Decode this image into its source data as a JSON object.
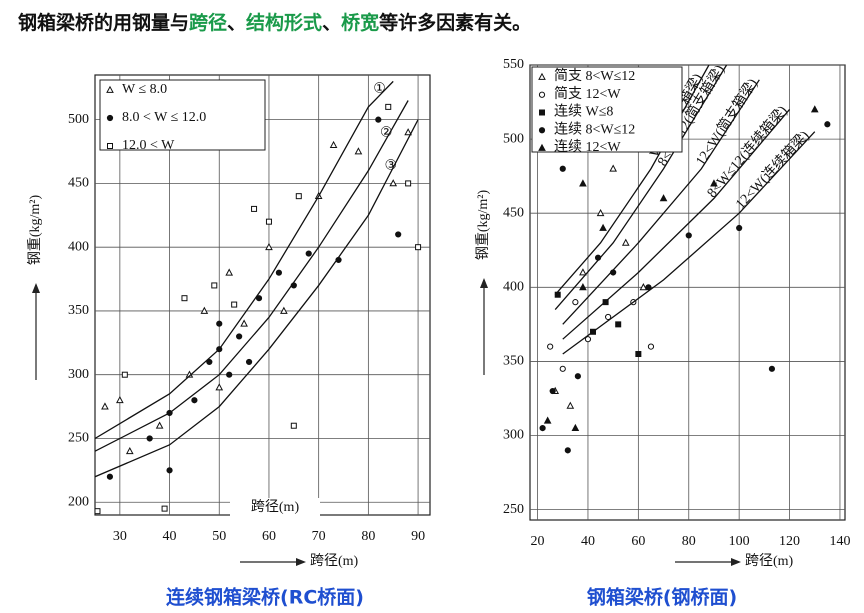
{
  "slide": {
    "heading": [
      {
        "text": "钢箱梁桥的用钢量与",
        "color": "#111111"
      },
      {
        "text": "跨径",
        "color": "#1a9a4a"
      },
      {
        "text": "、",
        "color": "#111111"
      },
      {
        "text": "结构形式",
        "color": "#1a9a4a"
      },
      {
        "text": "、",
        "color": "#111111"
      },
      {
        "text": "桥宽",
        "color": "#1a9a4a"
      },
      {
        "text": "等许多因素有关。",
        "color": "#111111"
      }
    ],
    "captions": [
      "连续钢箱梁桥(RC桥面)",
      "钢箱梁桥(钢桥面)"
    ]
  },
  "chart_data": [
    {
      "type": "scatter",
      "x_label": "跨径(m)",
      "inner_x_label": "跨径(m)",
      "y_label": "钢重(kg/m²)",
      "xlim": [
        25,
        92.4
      ],
      "ylim": [
        190,
        535
      ],
      "xticks": [
        30,
        40,
        50,
        60,
        70,
        80,
        90
      ],
      "yticks": [
        200,
        250,
        300,
        350,
        400,
        450,
        500
      ],
      "grid": true,
      "series": [
        {
          "name": "W ≤ 8.0",
          "marker": "triangle",
          "filled": false,
          "color": "#111111",
          "x": [
            27,
            30,
            38,
            44,
            47,
            52,
            55,
            60,
            63,
            70,
            73,
            78,
            85,
            88,
            32,
            50
          ],
          "values": [
            275,
            280,
            260,
            300,
            350,
            380,
            340,
            400,
            350,
            440,
            480,
            475,
            450,
            490,
            240,
            290
          ]
        },
        {
          "name": "8.0 < W ≤ 12.0",
          "marker": "circle",
          "filled": true,
          "color": "#111111",
          "x": [
            28,
            36,
            40,
            45,
            48,
            50,
            52,
            54,
            56,
            58,
            62,
            65,
            68,
            74,
            82,
            86,
            40,
            50
          ],
          "values": [
            220,
            250,
            270,
            280,
            310,
            320,
            300,
            330,
            310,
            360,
            380,
            370,
            395,
            390,
            500,
            410,
            225,
            340
          ]
        },
        {
          "name": "12.0 < W",
          "marker": "square",
          "filled": false,
          "color": "#111111",
          "x": [
            25.5,
            31,
            39,
            43,
            49,
            53,
            57,
            60,
            65,
            66,
            84,
            90,
            88
          ],
          "values": [
            193,
            300,
            195,
            360,
            370,
            355,
            430,
            420,
            260,
            440,
            510,
            400,
            450
          ]
        },
        {
          "kind": "curve",
          "label": "①",
          "color": "#111111",
          "x": [
            25,
            40,
            50,
            60,
            70,
            80,
            85
          ],
          "values": [
            250,
            285,
            320,
            375,
            440,
            510,
            530
          ]
        },
        {
          "kind": "curve",
          "label": "②",
          "color": "#111111",
          "x": [
            25,
            40,
            50,
            60,
            70,
            80,
            88
          ],
          "values": [
            240,
            270,
            300,
            345,
            400,
            460,
            515
          ]
        },
        {
          "kind": "curve",
          "label": "③",
          "color": "#111111",
          "x": [
            25,
            40,
            50,
            60,
            70,
            80,
            90
          ],
          "values": [
            220,
            245,
            275,
            320,
            370,
            425,
            500
          ]
        }
      ]
    },
    {
      "type": "scatter",
      "x_label": "跨径(m)",
      "y_label": "钢重(kg/m²)",
      "xlim": [
        17,
        142
      ],
      "ylim": [
        243,
        550
      ],
      "xticks": [
        20,
        40,
        60,
        80,
        100,
        120,
        140
      ],
      "yticks": [
        250,
        300,
        350,
        400,
        450,
        500,
        550
      ],
      "grid": true,
      "series": [
        {
          "name": "简支 8<W≤12",
          "marker": "triangle",
          "filled": false,
          "color": "#111111",
          "x": [
            27,
            33,
            38,
            45,
            50,
            55,
            62
          ],
          "values": [
            330,
            320,
            410,
            450,
            480,
            430,
            400
          ]
        },
        {
          "name": "简支 12<W",
          "marker": "circle",
          "filled": false,
          "color": "#111111",
          "x": [
            25,
            30,
            40,
            48,
            58,
            65,
            35
          ],
          "values": [
            360,
            345,
            365,
            380,
            390,
            360,
            390
          ]
        },
        {
          "name": "连续 W≤8",
          "marker": "square",
          "filled": true,
          "color": "#111111",
          "x": [
            28,
            42,
            52,
            60,
            47
          ],
          "values": [
            395,
            370,
            375,
            355,
            390
          ]
        },
        {
          "name": "连续 8<W≤12",
          "marker": "circle",
          "filled": true,
          "color": "#111111",
          "x": [
            22,
            26,
            32,
            36,
            44,
            50,
            64,
            80,
            100,
            113,
            135,
            30
          ],
          "values": [
            305,
            330,
            290,
            340,
            420,
            410,
            400,
            435,
            440,
            345,
            510,
            480
          ]
        },
        {
          "name": "连续 12<W",
          "marker": "triangle",
          "filled": true,
          "color": "#111111",
          "x": [
            24,
            35,
            38,
            46,
            70,
            90,
            130,
            38
          ],
          "values": [
            310,
            305,
            400,
            440,
            460,
            470,
            520,
            470
          ]
        },
        {
          "kind": "curve",
          "label": "W≤8(简支箱梁)",
          "color": "#111111",
          "x": [
            27,
            45,
            65,
            88
          ],
          "values": [
            395,
            430,
            480,
            550
          ]
        },
        {
          "kind": "curve",
          "label": "8<W≤12(简支箱梁)",
          "color": "#111111",
          "x": [
            27,
            50,
            70,
            95
          ],
          "values": [
            385,
            430,
            480,
            550
          ]
        },
        {
          "kind": "curve",
          "label": "12<W(简支箱梁)",
          "color": "#111111",
          "x": [
            30,
            60,
            85,
            108
          ],
          "values": [
            375,
            430,
            480,
            540
          ]
        },
        {
          "kind": "curve",
          "label": "8<W≤12(连续箱梁)",
          "color": "#111111",
          "x": [
            30,
            60,
            90,
            120
          ],
          "values": [
            365,
            410,
            460,
            520
          ]
        },
        {
          "kind": "curve",
          "label": "12<W(连续箱梁)",
          "color": "#111111",
          "x": [
            30,
            70,
            100,
            130
          ],
          "values": [
            355,
            405,
            450,
            505
          ]
        }
      ]
    }
  ]
}
